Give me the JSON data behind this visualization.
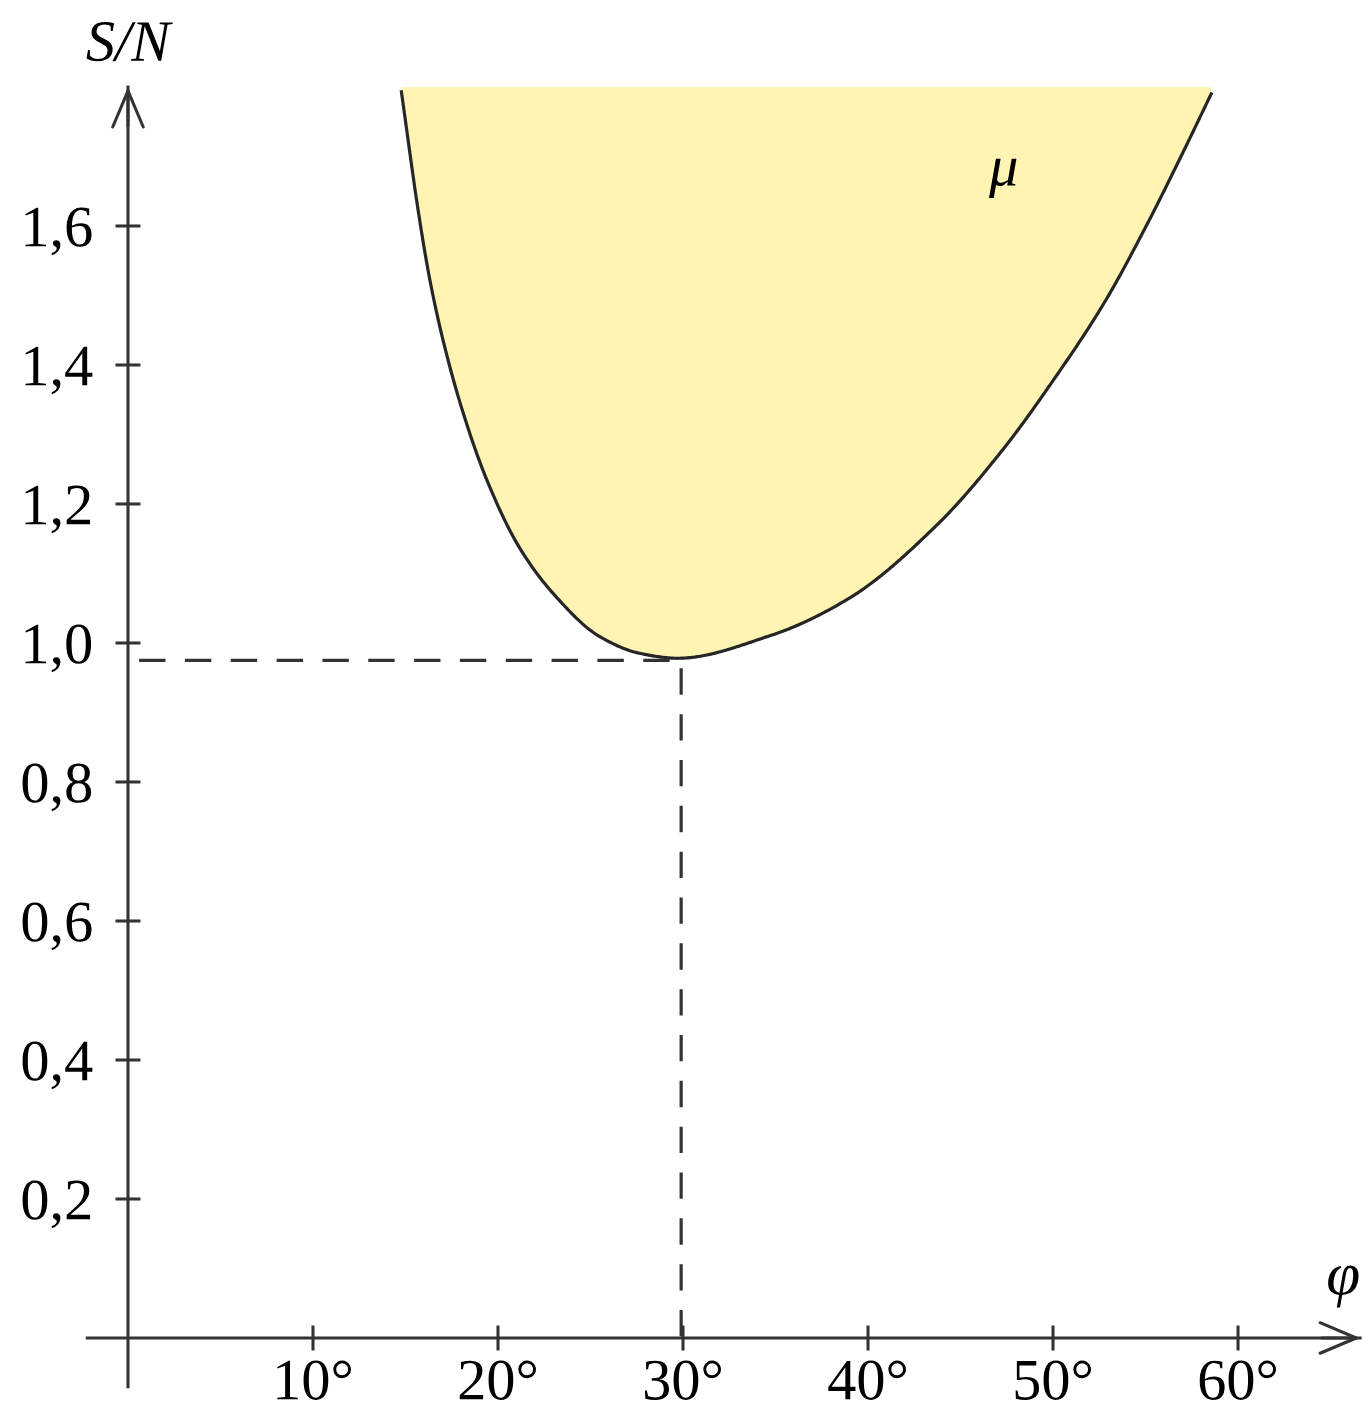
{
  "chart_data": {
    "type": "line",
    "xlabel": "φ",
    "ylabel": "S/N",
    "xlim": [
      -2.2,
      66.6
    ],
    "ylim": [
      -0.07,
      1.8
    ],
    "xticks": [
      {
        "value": 10,
        "label": "10°"
      },
      {
        "value": 20,
        "label": "20°"
      },
      {
        "value": 30,
        "label": "30°"
      },
      {
        "value": 40,
        "label": "40°"
      },
      {
        "value": 50,
        "label": "50°"
      },
      {
        "value": 60,
        "label": "60°"
      }
    ],
    "yticks": [
      {
        "value": 0.2,
        "label": "0,2"
      },
      {
        "value": 0.4,
        "label": "0,4"
      },
      {
        "value": 0.6,
        "label": "0,6"
      },
      {
        "value": 0.8,
        "label": "0,8"
      },
      {
        "value": 1.0,
        "label": "1,0"
      },
      {
        "value": 1.2,
        "label": "1,2"
      },
      {
        "value": 1.4,
        "label": "1,4"
      },
      {
        "value": 1.6,
        "label": "1,6"
      }
    ],
    "series": [
      {
        "name": "μ",
        "color": "#262626",
        "x": [
          14.78,
          15.71,
          16.32,
          17.12,
          18.13,
          19.39,
          21.12,
          22.99,
          25.51,
          27.68,
          29.7,
          34.76,
          38.96,
          43.77,
          47.25,
          50.17,
          52.78,
          54.98,
          56.99,
          58.55
        ],
        "values": [
          1.793,
          1.618,
          1.522,
          1.426,
          1.33,
          1.235,
          1.139,
          1.071,
          1.009,
          0.985,
          0.978,
          1.011,
          1.064,
          1.171,
          1.277,
          1.384,
          1.49,
          1.597,
          1.704,
          1.79
        ]
      },
      {
        "color": "#333333",
        "line_style": "dashed",
        "x": [
          0.6,
          29.9,
          29.9
        ],
        "values": [
          0.975,
          0.975,
          0
        ]
      }
    ]
  }
}
